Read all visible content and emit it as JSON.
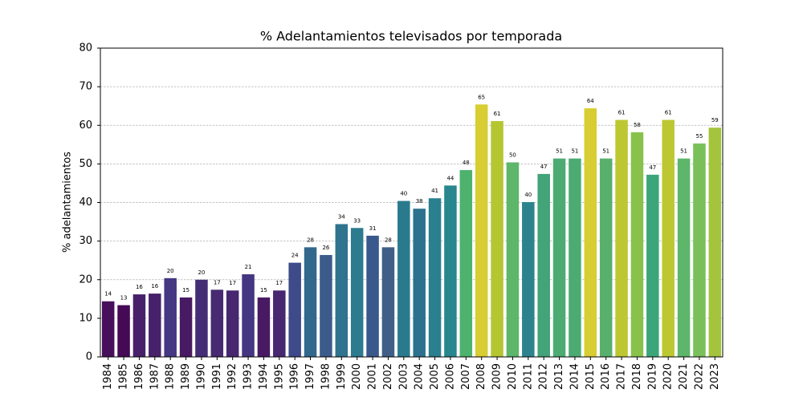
{
  "chart_data": {
    "type": "bar",
    "title": "% Adelantamientos televisados por temporada",
    "ylabel": "% adelantamientos",
    "categories": [
      "1984",
      "1985",
      "1986",
      "1987",
      "1988",
      "1989",
      "1990",
      "1991",
      "1992",
      "1993",
      "1994",
      "1995",
      "1996",
      "1997",
      "1998",
      "1999",
      "2000",
      "2001",
      "2002",
      "2003",
      "2004",
      "2005",
      "2006",
      "2007",
      "2008",
      "2009",
      "2010",
      "2011",
      "2012",
      "2013",
      "2014",
      "2015",
      "2016",
      "2017",
      "2018",
      "2019",
      "2020",
      "2021",
      "2022",
      "2023"
    ],
    "values": [
      14.4,
      13.4,
      16.2,
      16.4,
      20.4,
      15.4,
      20.0,
      17.4,
      17.2,
      21.4,
      15.4,
      17.2,
      24.4,
      28.4,
      26.4,
      34.4,
      33.4,
      31.4,
      28.4,
      40.4,
      38.4,
      41.1,
      44.4,
      48.4,
      65.4,
      61.1,
      50.4,
      40.1,
      47.4,
      51.4,
      51.4,
      64.4,
      51.4,
      61.4,
      58.2,
      47.2,
      61.4,
      51.4,
      55.3,
      59.4
    ],
    "value_labels": [
      "14",
      "13",
      "16",
      "16",
      "20",
      "15",
      "20",
      "17",
      "17",
      "21",
      "15",
      "17",
      "24",
      "28",
      "26",
      "34",
      "33",
      "31",
      "28",
      "40",
      "38",
      "41",
      "44",
      "48",
      "65",
      "61",
      "50",
      "40",
      "47",
      "51",
      "51",
      "64",
      "51",
      "61",
      "58",
      "47",
      "61",
      "51",
      "55",
      "59"
    ],
    "colors": [
      "#46105a",
      "#450a56",
      "#48206a",
      "#48216b",
      "#453781",
      "#481a63",
      "#452d76",
      "#472a72",
      "#472770",
      "#453681",
      "#481a63",
      "#472770",
      "#3e4a89",
      "#33688d",
      "#3b5b8b",
      "#2f738e",
      "#2c7b8e",
      "#39588c",
      "#3f5f86",
      "#2a7a8e",
      "#2c728e",
      "#2a808e",
      "#27868e",
      "#4cb26e",
      "#d8cd32",
      "#b5c631",
      "#5db66a",
      "#2c838d",
      "#43a379",
      "#4cab72",
      "#4cab72",
      "#d8cd32",
      "#59af6c",
      "#bdc732",
      "#88c24b",
      "#3da57a",
      "#bdc732",
      "#5db66a",
      "#7ac05a",
      "#a4c43d"
    ],
    "ylim": [
      0,
      80
    ],
    "yticks": [
      0,
      10,
      20,
      30,
      40,
      50,
      60,
      70,
      80
    ],
    "grid": true
  }
}
